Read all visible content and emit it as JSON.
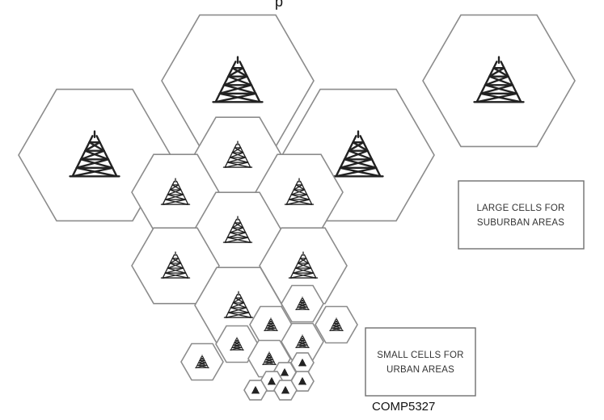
{
  "diagram": {
    "top_fragment": "p",
    "large_cells_label": [
      "LARGE CELLS FOR",
      "SUBURBAN AREAS"
    ],
    "small_cells_label": [
      "SMALL CELLS FOR",
      "URBAN AREAS"
    ],
    "course_code": "COMP5327",
    "colors": {
      "hex_stroke": "#8c8c8c",
      "tower": "#222222",
      "label_box_stroke": "#6f6f6f"
    },
    "icons": [
      "cell-tower-icon"
    ]
  }
}
